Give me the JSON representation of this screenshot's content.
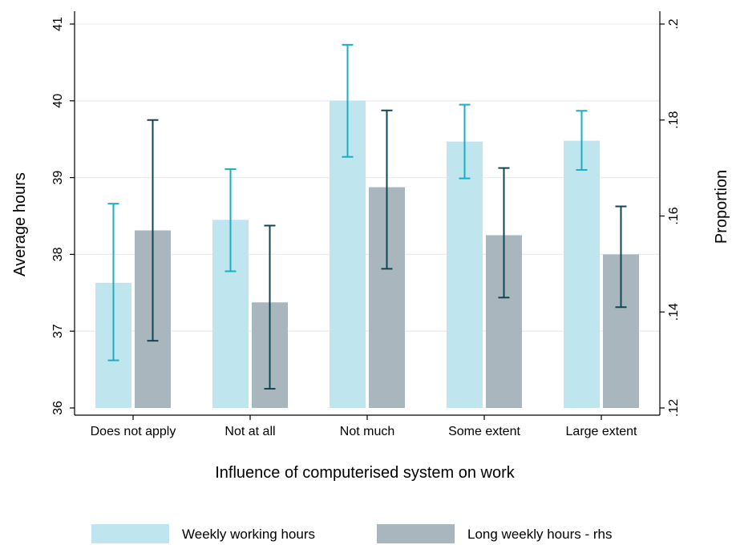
{
  "chart_data": {
    "type": "bar",
    "xlabel": "Influence of computerised system on work",
    "ylabel_left": "Average hours",
    "ylabel_right": "Proportion",
    "categories": [
      "Does not apply",
      "Not at all",
      "Not much",
      "Some extent",
      "Large extent"
    ],
    "left_axis": {
      "ylim": [
        36,
        41
      ],
      "ticks": [
        "36",
        "37",
        "38",
        "39",
        "40",
        "41"
      ],
      "tick_values": [
        36,
        37,
        38,
        39,
        40,
        41
      ]
    },
    "right_axis": {
      "ylim": [
        0.12,
        0.2
      ],
      "ticks": [
        ".12",
        ".14",
        ".16",
        ".18",
        ".2"
      ],
      "tick_values": [
        0.12,
        0.14,
        0.16,
        0.18,
        0.2
      ]
    },
    "grid": true,
    "legend_position": "bottom",
    "series": [
      {
        "name": "Weekly working hours",
        "axis": "left",
        "color": "#bfe6ee",
        "error_color": "#19adc6",
        "values": [
          37.63,
          38.45,
          40.0,
          39.47,
          39.48
        ],
        "ci_low": [
          36.62,
          37.78,
          39.27,
          38.99,
          39.1
        ],
        "ci_high": [
          38.66,
          39.11,
          40.73,
          39.95,
          39.87
        ]
      },
      {
        "name": "Long weekly hours - rhs",
        "axis": "right",
        "color": "#aab6bd",
        "error_color": "#0f4555",
        "values": [
          0.157,
          0.142,
          0.166,
          0.156,
          0.152
        ],
        "ci_low": [
          0.134,
          0.124,
          0.149,
          0.143,
          0.141
        ],
        "ci_high": [
          0.18,
          0.158,
          0.182,
          0.17,
          0.162
        ]
      }
    ]
  }
}
